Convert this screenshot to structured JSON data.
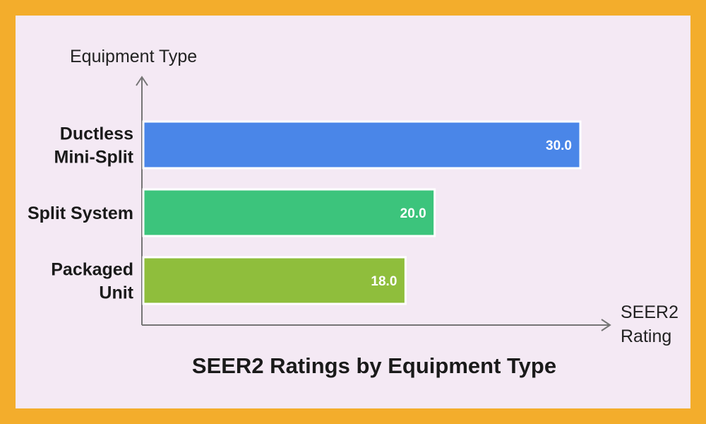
{
  "chart_data": {
    "type": "bar",
    "orientation": "horizontal",
    "title": "SEER2 Ratings by Equipment Type",
    "ylabel": "Equipment Type",
    "xlabel_lines": [
      "SEER2",
      "Rating"
    ],
    "xlim": [
      0,
      30.0
    ],
    "grid": false,
    "categories": [
      {
        "lines": [
          "Ductless",
          "Mini-Split"
        ]
      },
      {
        "lines": [
          "Split System"
        ]
      },
      {
        "lines": [
          "Packaged",
          "Unit"
        ]
      }
    ],
    "values": [
      30.0,
      20.0,
      18.0
    ],
    "value_labels": [
      "30.0",
      "20.0",
      "18.0"
    ],
    "colors": [
      "#4a86e8",
      "#3cc47c",
      "#8fbe3c"
    ],
    "axis_color": "#757575",
    "background": "#f4e9f4",
    "frame_color": "#f3ad2c"
  }
}
